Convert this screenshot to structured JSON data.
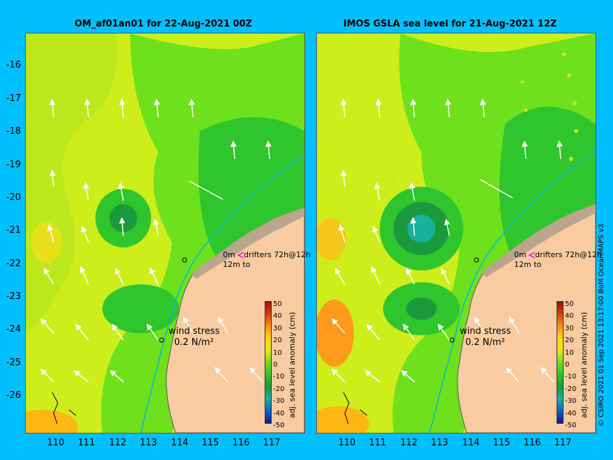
{
  "left_panel": {
    "title": "OM_af01an01 for 22-Aug-2021 00Z",
    "wind_label": "wind stress",
    "wind_scale": "0.2 N/m²",
    "drifters_line1": "0m",
    "drifters_line2": "drifters 72h@12h",
    "drifters_line3": "12m to"
  },
  "right_panel": {
    "title": "IMOS GSLA sea level  for 21-Aug-2021 12Z",
    "wind_label": "wind stress",
    "wind_scale": "0.2 N/m²",
    "drifters_line1": "0m",
    "drifters_line2": "drifters 72h@12h",
    "drifters_line3": "12m to"
  },
  "y_axis": {
    "ticks": [
      "-16",
      "-17",
      "-18",
      "-19",
      "-20",
      "-21",
      "-22",
      "-23",
      "-24",
      "-25",
      "-26"
    ]
  },
  "x_axis": {
    "ticks": [
      "110",
      "111",
      "112",
      "113",
      "114",
      "115",
      "116",
      "117"
    ]
  },
  "colorbar": {
    "label": "adj. sea level anomaly (cm)",
    "ticks": [
      "50",
      "40",
      "30",
      "20",
      "10",
      "0",
      "-10",
      "-20",
      "-30",
      "-40",
      "-50"
    ],
    "range": [
      -50,
      50
    ]
  },
  "credit": "© CSIRO 2021   01 Sep 2021 13:17:00 BoM OceanMAPS v3",
  "colors": {
    "background": "#00bfff",
    "land": "#f9cba0",
    "coast_fill": "#b9a68d",
    "anomaly_low": "#1a9a3c",
    "anomaly_mid": "#2fc52c",
    "anomaly_zero": "#6ee01c",
    "anomaly_high": "#d4f01a",
    "anomaly_higher": "#ffb514",
    "drifter_marker": "#ff00ff",
    "wind_vector": "#ffffff",
    "current_line": "#00bcd4"
  }
}
